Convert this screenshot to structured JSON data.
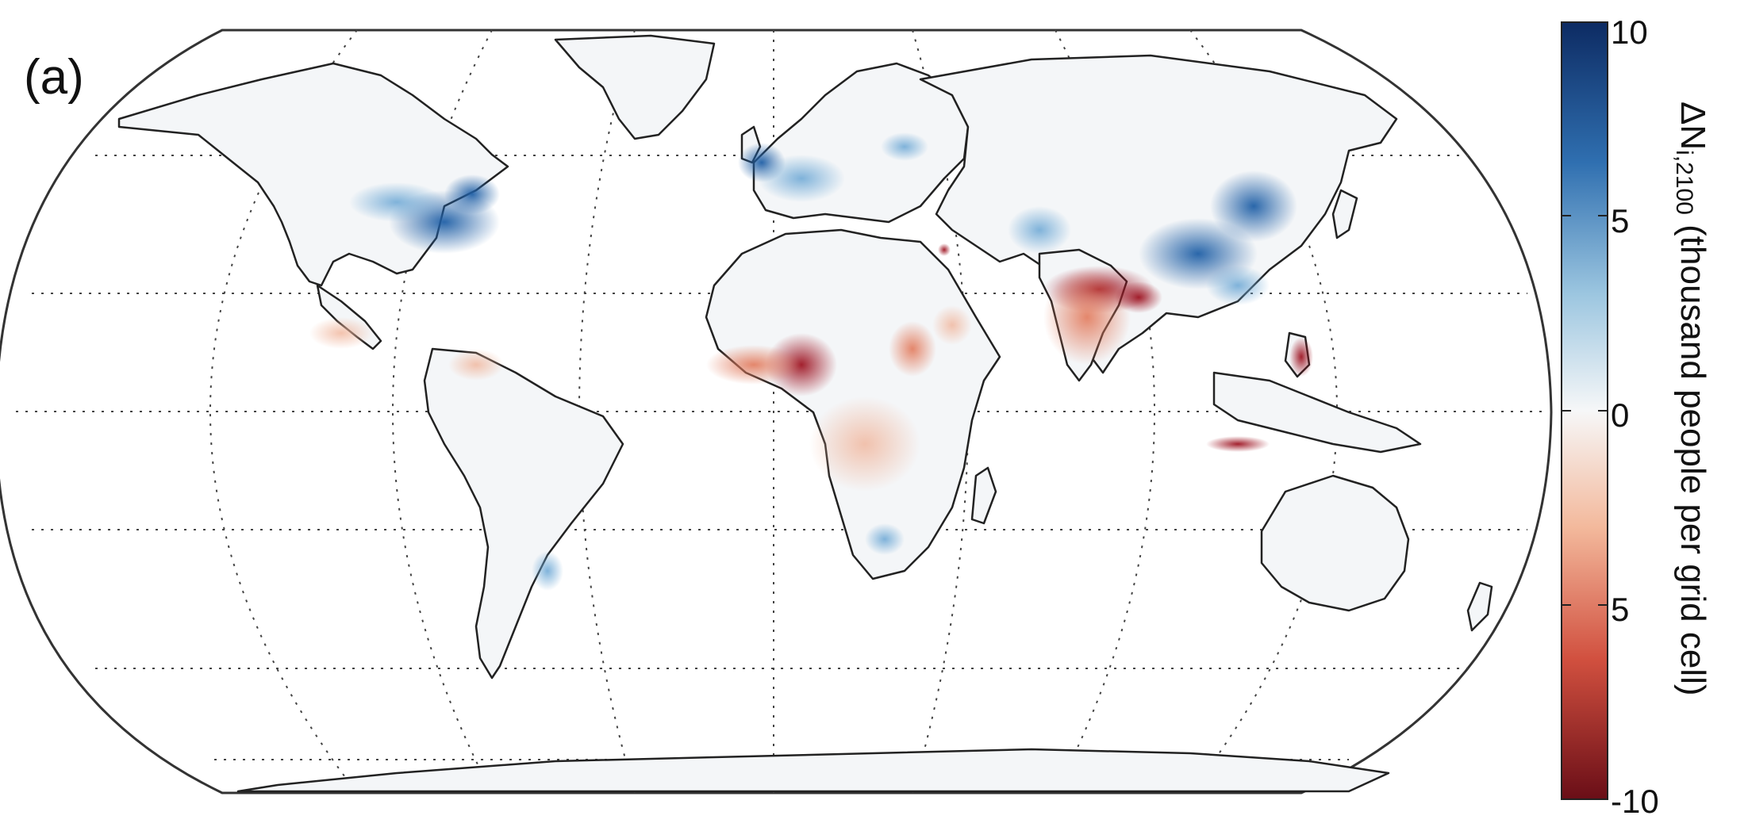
{
  "panel_label": "(a)",
  "colorbar": {
    "title_main": "ΔN",
    "title_sub": "i,2100",
    "title_rest": " (thousand people per grid cell)",
    "ticks": [
      "10",
      "5",
      "0",
      "5",
      "-10"
    ],
    "colors": [
      "#0d2b63",
      "#2f6fb0",
      "#9cc6e0",
      "#f6f7f8",
      "#f3b99c",
      "#d1503f",
      "#6a0e17"
    ]
  },
  "map": {
    "projection": "Robinson",
    "graticule_style": "dotted",
    "land_color": "#f4f6f8",
    "border_color": "#222222"
  },
  "legend_colors": {
    "increase": "#1f5fa6",
    "decrease": "#b2182b"
  }
}
